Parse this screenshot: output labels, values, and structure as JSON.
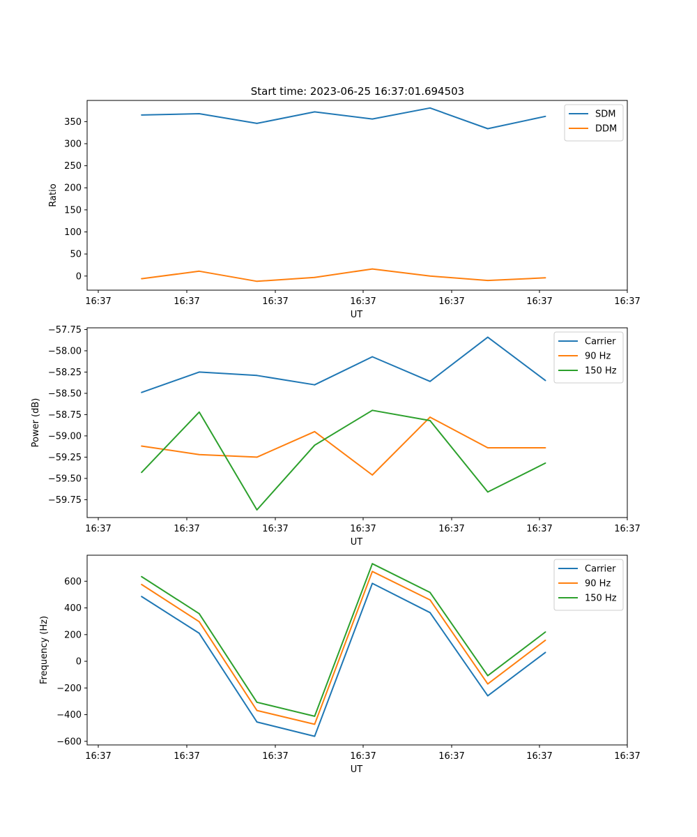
{
  "figure": {
    "title": "Start time: 2023-06-25 16:37:01.694503"
  },
  "chart_data": [
    {
      "type": "line",
      "title": "Start time: 2023-06-25 16:37:01.694503",
      "xlabel": "UT",
      "ylabel": "Ratio",
      "x_tick_labels": [
        "16:37",
        "16:37",
        "16:37",
        "16:37",
        "16:37",
        "16:37",
        "16:37"
      ],
      "y_ticks": [
        0,
        50,
        100,
        150,
        200,
        250,
        300,
        350
      ],
      "y_tick_labels": [
        "0",
        "50",
        "100",
        "150",
        "200",
        "250",
        "300",
        "350"
      ],
      "ylim": [
        -32,
        398
      ],
      "legend_position": "top-right",
      "grid": false,
      "series": [
        {
          "name": "SDM",
          "color": "#1f77b4",
          "values": [
            365,
            368,
            346,
            372,
            356,
            381,
            334,
            362
          ]
        },
        {
          "name": "DDM",
          "color": "#ff7f0e",
          "values": [
            -6,
            11,
            -12,
            -3,
            16,
            0,
            -10,
            -4
          ]
        }
      ]
    },
    {
      "type": "line",
      "title": "",
      "xlabel": "UT",
      "ylabel": "Power (dB)",
      "x_tick_labels": [
        "16:37",
        "16:37",
        "16:37",
        "16:37",
        "16:37",
        "16:37",
        "16:37"
      ],
      "y_ticks": [
        -59.75,
        -59.5,
        -59.25,
        -59.0,
        -58.75,
        -58.5,
        -58.25,
        -58.0,
        -57.75
      ],
      "y_tick_labels": [
        "−59.75",
        "−59.50",
        "−59.25",
        "−59.00",
        "−58.75",
        "−58.50",
        "−58.25",
        "−58.00",
        "−57.75"
      ],
      "ylim": [
        -59.96,
        -57.73
      ],
      "legend_position": "top-right",
      "grid": false,
      "series": [
        {
          "name": "Carrier",
          "color": "#1f77b4",
          "values": [
            -58.49,
            -58.25,
            -58.29,
            -58.4,
            -58.07,
            -58.36,
            -57.84,
            -58.35
          ]
        },
        {
          "name": "90 Hz",
          "color": "#ff7f0e",
          "values": [
            -59.12,
            -59.22,
            -59.25,
            -58.95,
            -59.46,
            -58.78,
            -59.14,
            -59.14
          ]
        },
        {
          "name": "150 Hz",
          "color": "#2ca02c",
          "values": [
            -59.43,
            -58.72,
            -59.87,
            -59.11,
            -58.7,
            -58.82,
            -59.66,
            -59.32
          ]
        }
      ]
    },
    {
      "type": "line",
      "title": "",
      "xlabel": "UT",
      "ylabel": "Frequency (Hz)",
      "x_tick_labels": [
        "16:37",
        "16:37",
        "16:37",
        "16:37",
        "16:37",
        "16:37",
        "16:37"
      ],
      "y_ticks": [
        -600,
        -400,
        -200,
        0,
        200,
        400,
        600
      ],
      "y_tick_labels": [
        "−600",
        "−400",
        "−200",
        "0",
        "200",
        "400",
        "600"
      ],
      "ylim": [
        -627,
        795
      ],
      "legend_position": "top-right",
      "grid": false,
      "series": [
        {
          "name": "Carrier",
          "color": "#1f77b4",
          "values": [
            486,
            210,
            -455,
            -562,
            584,
            365,
            -259,
            67
          ]
        },
        {
          "name": "90 Hz",
          "color": "#ff7f0e",
          "values": [
            576,
            297,
            -369,
            -472,
            673,
            460,
            -170,
            158
          ]
        },
        {
          "name": "150 Hz",
          "color": "#2ca02c",
          "values": [
            635,
            357,
            -307,
            -412,
            731,
            516,
            -108,
            220
          ]
        }
      ]
    }
  ]
}
